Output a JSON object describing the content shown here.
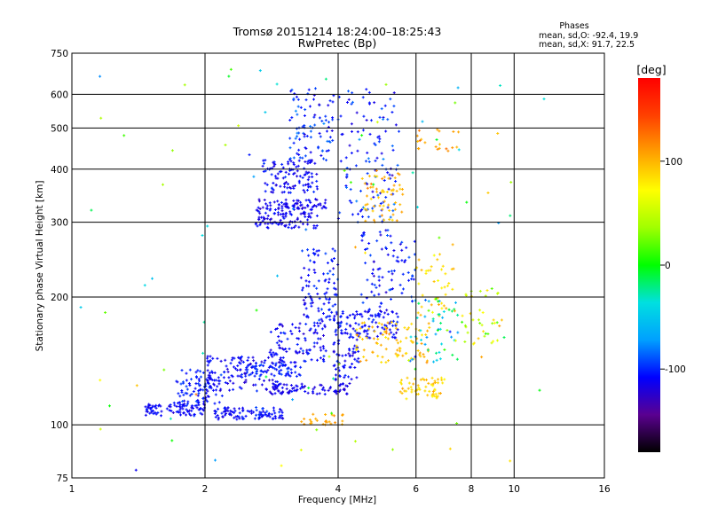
{
  "chart_data": {
    "type": "scatter",
    "title": "Tromsø 20151214 18:24:00–18:25:43",
    "subtitle": "RwPretec (Bp)",
    "xlabel": "Frequency [MHz]",
    "ylabel": "Stationary phase Virtual Height [km]",
    "x_scale": "log",
    "y_scale": "log",
    "xlim": [
      1,
      16
    ],
    "ylim": [
      75,
      750
    ],
    "x_ticks": [
      {
        "value": 1,
        "label": "1"
      },
      {
        "value": 2,
        "label": "2"
      },
      {
        "value": 4,
        "label": "4"
      },
      {
        "value": 6,
        "label": "6"
      },
      {
        "value": 8,
        "label": "8"
      },
      {
        "value": 10,
        "label": "10"
      },
      {
        "value": 16,
        "label": "16"
      }
    ],
    "y_ticks": [
      {
        "value": 75,
        "label": "75"
      },
      {
        "value": 100,
        "label": "100"
      },
      {
        "value": 200,
        "label": "200"
      },
      {
        "value": 300,
        "label": "300"
      },
      {
        "value": 400,
        "label": "400"
      },
      {
        "value": 500,
        "label": "500"
      },
      {
        "value": 600,
        "label": "600"
      },
      {
        "value": 750,
        "label": "750"
      }
    ],
    "grid_x": [
      2,
      4,
      6,
      8,
      10
    ],
    "grid_y": [
      100,
      200,
      300,
      400,
      500,
      600
    ],
    "grid": true,
    "stats": {
      "heading": "Phases",
      "line_o": "mean, sd,O: -92.4, 19.9",
      "line_x": "mean, sd,X:  91.7, 22.5"
    },
    "colorbar": {
      "unit": "[deg]",
      "range": [
        -180,
        180
      ],
      "ticks": [
        {
          "value": 100,
          "label": "100"
        },
        {
          "value": 0,
          "label": "0"
        },
        {
          "value": -100,
          "label": "-100"
        }
      ],
      "colormap": [
        "#000000",
        "#5a0090",
        "#0000ff",
        "#00a0ff",
        "#00e0e0",
        "#00ff00",
        "#a0ff00",
        "#ffff00",
        "#ffa000",
        "#ff4000",
        "#ff0000"
      ]
    },
    "clusters": [
      {
        "f0": 1.45,
        "f1": 2.0,
        "h0": 105,
        "h1": 112,
        "phase": -110,
        "n": 90,
        "sd": 12
      },
      {
        "f0": 1.7,
        "f1": 2.2,
        "h0": 112,
        "h1": 135,
        "phase": -105,
        "n": 90,
        "sd": 12
      },
      {
        "f0": 2.1,
        "f1": 3.0,
        "h0": 103,
        "h1": 110,
        "phase": -108,
        "n": 100,
        "sd": 12
      },
      {
        "f0": 2.0,
        "f1": 3.0,
        "h0": 120,
        "h1": 145,
        "phase": -112,
        "n": 130,
        "sd": 14
      },
      {
        "f0": 2.4,
        "f1": 3.3,
        "h0": 130,
        "h1": 140,
        "phase": -100,
        "n": 60,
        "sd": 12
      },
      {
        "f0": 2.8,
        "f1": 4.2,
        "h0": 118,
        "h1": 125,
        "phase": -115,
        "n": 80,
        "sd": 10
      },
      {
        "f0": 2.8,
        "f1": 3.8,
        "h0": 140,
        "h1": 175,
        "phase": -110,
        "n": 100,
        "sd": 14
      },
      {
        "f0": 3.3,
        "f1": 4.0,
        "h0": 175,
        "h1": 260,
        "phase": -105,
        "n": 100,
        "sd": 16
      },
      {
        "f0": 2.6,
        "f1": 3.6,
        "h0": 290,
        "h1": 320,
        "phase": -112,
        "n": 90,
        "sd": 12
      },
      {
        "f0": 2.6,
        "f1": 3.8,
        "h0": 320,
        "h1": 340,
        "phase": -115,
        "n": 80,
        "sd": 12
      },
      {
        "f0": 2.7,
        "f1": 3.6,
        "h0": 350,
        "h1": 420,
        "phase": -110,
        "n": 110,
        "sd": 14
      },
      {
        "f0": 3.1,
        "f1": 3.9,
        "h0": 420,
        "h1": 620,
        "phase": -100,
        "n": 90,
        "sd": 20
      },
      {
        "f0": 3.9,
        "f1": 5.5,
        "h0": 160,
        "h1": 185,
        "phase": -108,
        "n": 110,
        "sd": 14
      },
      {
        "f0": 3.9,
        "f1": 4.5,
        "h0": 125,
        "h1": 160,
        "phase": -110,
        "n": 60,
        "sd": 14
      },
      {
        "f0": 4.5,
        "f1": 6.0,
        "h0": 185,
        "h1": 290,
        "phase": -105,
        "n": 90,
        "sd": 18
      },
      {
        "f0": 4.0,
        "f1": 5.5,
        "h0": 300,
        "h1": 620,
        "phase": -100,
        "n": 120,
        "sd": 25
      },
      {
        "f0": 4.5,
        "f1": 5.6,
        "h0": 300,
        "h1": 400,
        "phase": 100,
        "n": 60,
        "sd": 18
      },
      {
        "f0": 4.4,
        "f1": 6.5,
        "h0": 140,
        "h1": 175,
        "phase": 95,
        "n": 90,
        "sd": 20
      },
      {
        "f0": 5.5,
        "f1": 7.0,
        "h0": 115,
        "h1": 130,
        "phase": 92,
        "n": 60,
        "sd": 18
      },
      {
        "f0": 6.0,
        "f1": 7.3,
        "h0": 180,
        "h1": 260,
        "phase": 85,
        "n": 40,
        "sd": 25
      },
      {
        "f0": 5.8,
        "f1": 7.5,
        "h0": 140,
        "h1": 200,
        "phase": -40,
        "n": 50,
        "sd": 70
      },
      {
        "f0": 7.2,
        "f1": 9.5,
        "h0": 150,
        "h1": 210,
        "phase": 60,
        "n": 40,
        "sd": 60
      },
      {
        "f0": 6.0,
        "f1": 7.5,
        "h0": 440,
        "h1": 500,
        "phase": 110,
        "n": 20,
        "sd": 20
      },
      {
        "f0": 3.3,
        "f1": 4.1,
        "h0": 100,
        "h1": 106,
        "phase": 105,
        "n": 25,
        "sd": 8
      },
      {
        "f0": 1.0,
        "f1": 12.0,
        "h0": 78,
        "h1": 700,
        "phase": 0,
        "n": 90,
        "sd": 110
      }
    ]
  }
}
